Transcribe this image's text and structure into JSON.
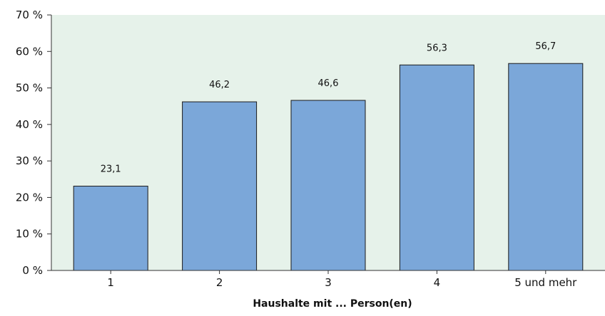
{
  "chart_data": {
    "type": "bar",
    "categories": [
      "1",
      "2",
      "3",
      "4",
      "5 und mehr"
    ],
    "values": [
      23.1,
      46.2,
      46.6,
      56.3,
      56.7
    ],
    "value_labels": [
      "23,1",
      "46,2",
      "46,6",
      "56,3",
      "56,7"
    ],
    "xlabel": "Haushalte mit ... Person(en)",
    "ylabel": "",
    "ylim": [
      0,
      70
    ],
    "y_ticks": [
      0,
      10,
      20,
      30,
      40,
      50,
      60,
      70
    ],
    "y_tick_labels": [
      "0 %",
      "10 %",
      "20 %",
      "30 %",
      "40 %",
      "50 %",
      "60 %",
      "70 %"
    ],
    "grid": false,
    "colors": {
      "bar_fill": "#7ba7d9",
      "bar_stroke": "#1a1a1a",
      "plot_background": "#e6f2ea",
      "axis": "#333333"
    }
  }
}
